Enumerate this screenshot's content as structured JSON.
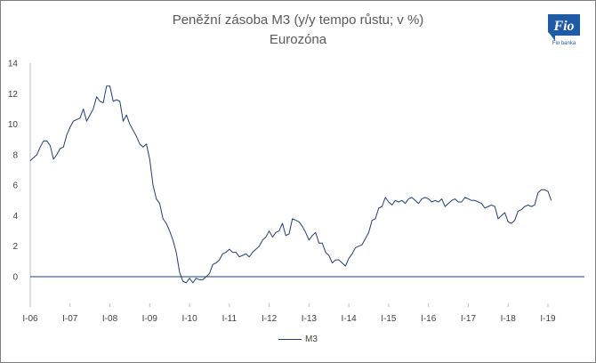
{
  "chart_data": {
    "type": "line",
    "title": "Peněžní zásoba M3 (y/y tempo růstu; v %)",
    "subtitle": "Eurozóna",
    "xlabel": "",
    "ylabel": "",
    "ylim": [
      -1,
      14
    ],
    "yticks": [
      14,
      12,
      10,
      8,
      6,
      4,
      2,
      0
    ],
    "xtick_labels": [
      "I-06",
      "I-07",
      "I-08",
      "I-09",
      "I-10",
      "I-11",
      "I-12",
      "I-13",
      "I-14",
      "I-15",
      "I-16",
      "I-17",
      "I-18",
      "I-19"
    ],
    "grid": false,
    "legend_position": "bottom",
    "series": [
      {
        "name": "M3",
        "color": "#1f3f74",
        "values": [
          7.6,
          7.8,
          8.0,
          8.5,
          8.9,
          8.9,
          8.6,
          7.7,
          8.0,
          8.4,
          8.5,
          9.3,
          9.8,
          10.2,
          10.3,
          10.4,
          11.0,
          10.2,
          10.6,
          11.0,
          11.8,
          11.5,
          11.4,
          12.5,
          12.5,
          11.5,
          11.6,
          11.5,
          10.2,
          10.6,
          10.0,
          9.6,
          9.2,
          8.7,
          8.5,
          8.7,
          7.7,
          6.0,
          5.1,
          4.8,
          3.8,
          3.5,
          3.0,
          2.4,
          1.6,
          0.3,
          -0.3,
          -0.4,
          -0.1,
          -0.4,
          -0.1,
          -0.2,
          -0.2,
          0.0,
          0.2,
          0.8,
          0.9,
          1.1,
          1.5,
          1.6,
          1.8,
          1.6,
          1.6,
          1.3,
          1.4,
          1.5,
          1.3,
          1.6,
          1.8,
          2.0,
          2.4,
          2.6,
          3.0,
          2.6,
          2.9,
          3.0,
          3.5,
          2.7,
          2.8,
          3.8,
          3.7,
          3.6,
          3.3,
          2.9,
          2.4,
          2.7,
          2.9,
          2.2,
          2.2,
          1.6,
          1.4,
          0.9,
          1.1,
          1.1,
          0.9,
          0.7,
          1.2,
          1.5,
          1.9,
          2.0,
          2.1,
          2.5,
          2.9,
          3.7,
          3.8,
          4.5,
          4.6,
          5.2,
          4.9,
          4.7,
          5.0,
          4.9,
          5.0,
          4.8,
          5.1,
          5.2,
          5.0,
          4.8,
          5.1,
          5.2,
          5.1,
          4.9,
          5.0,
          4.9,
          5.1,
          4.6,
          4.8,
          5.0,
          5.1,
          4.9,
          4.9,
          5.2,
          5.1,
          5.0,
          5.0,
          4.9,
          4.8,
          4.5,
          4.6,
          4.7,
          4.6,
          3.8,
          4.0,
          4.2,
          3.6,
          3.5,
          3.7,
          4.3,
          4.4,
          4.6,
          4.7,
          4.6,
          4.7,
          5.5,
          5.7,
          5.7,
          5.6,
          5.0
        ]
      }
    ]
  },
  "logo": {
    "text": "Fio",
    "caption": "Fio banka"
  }
}
